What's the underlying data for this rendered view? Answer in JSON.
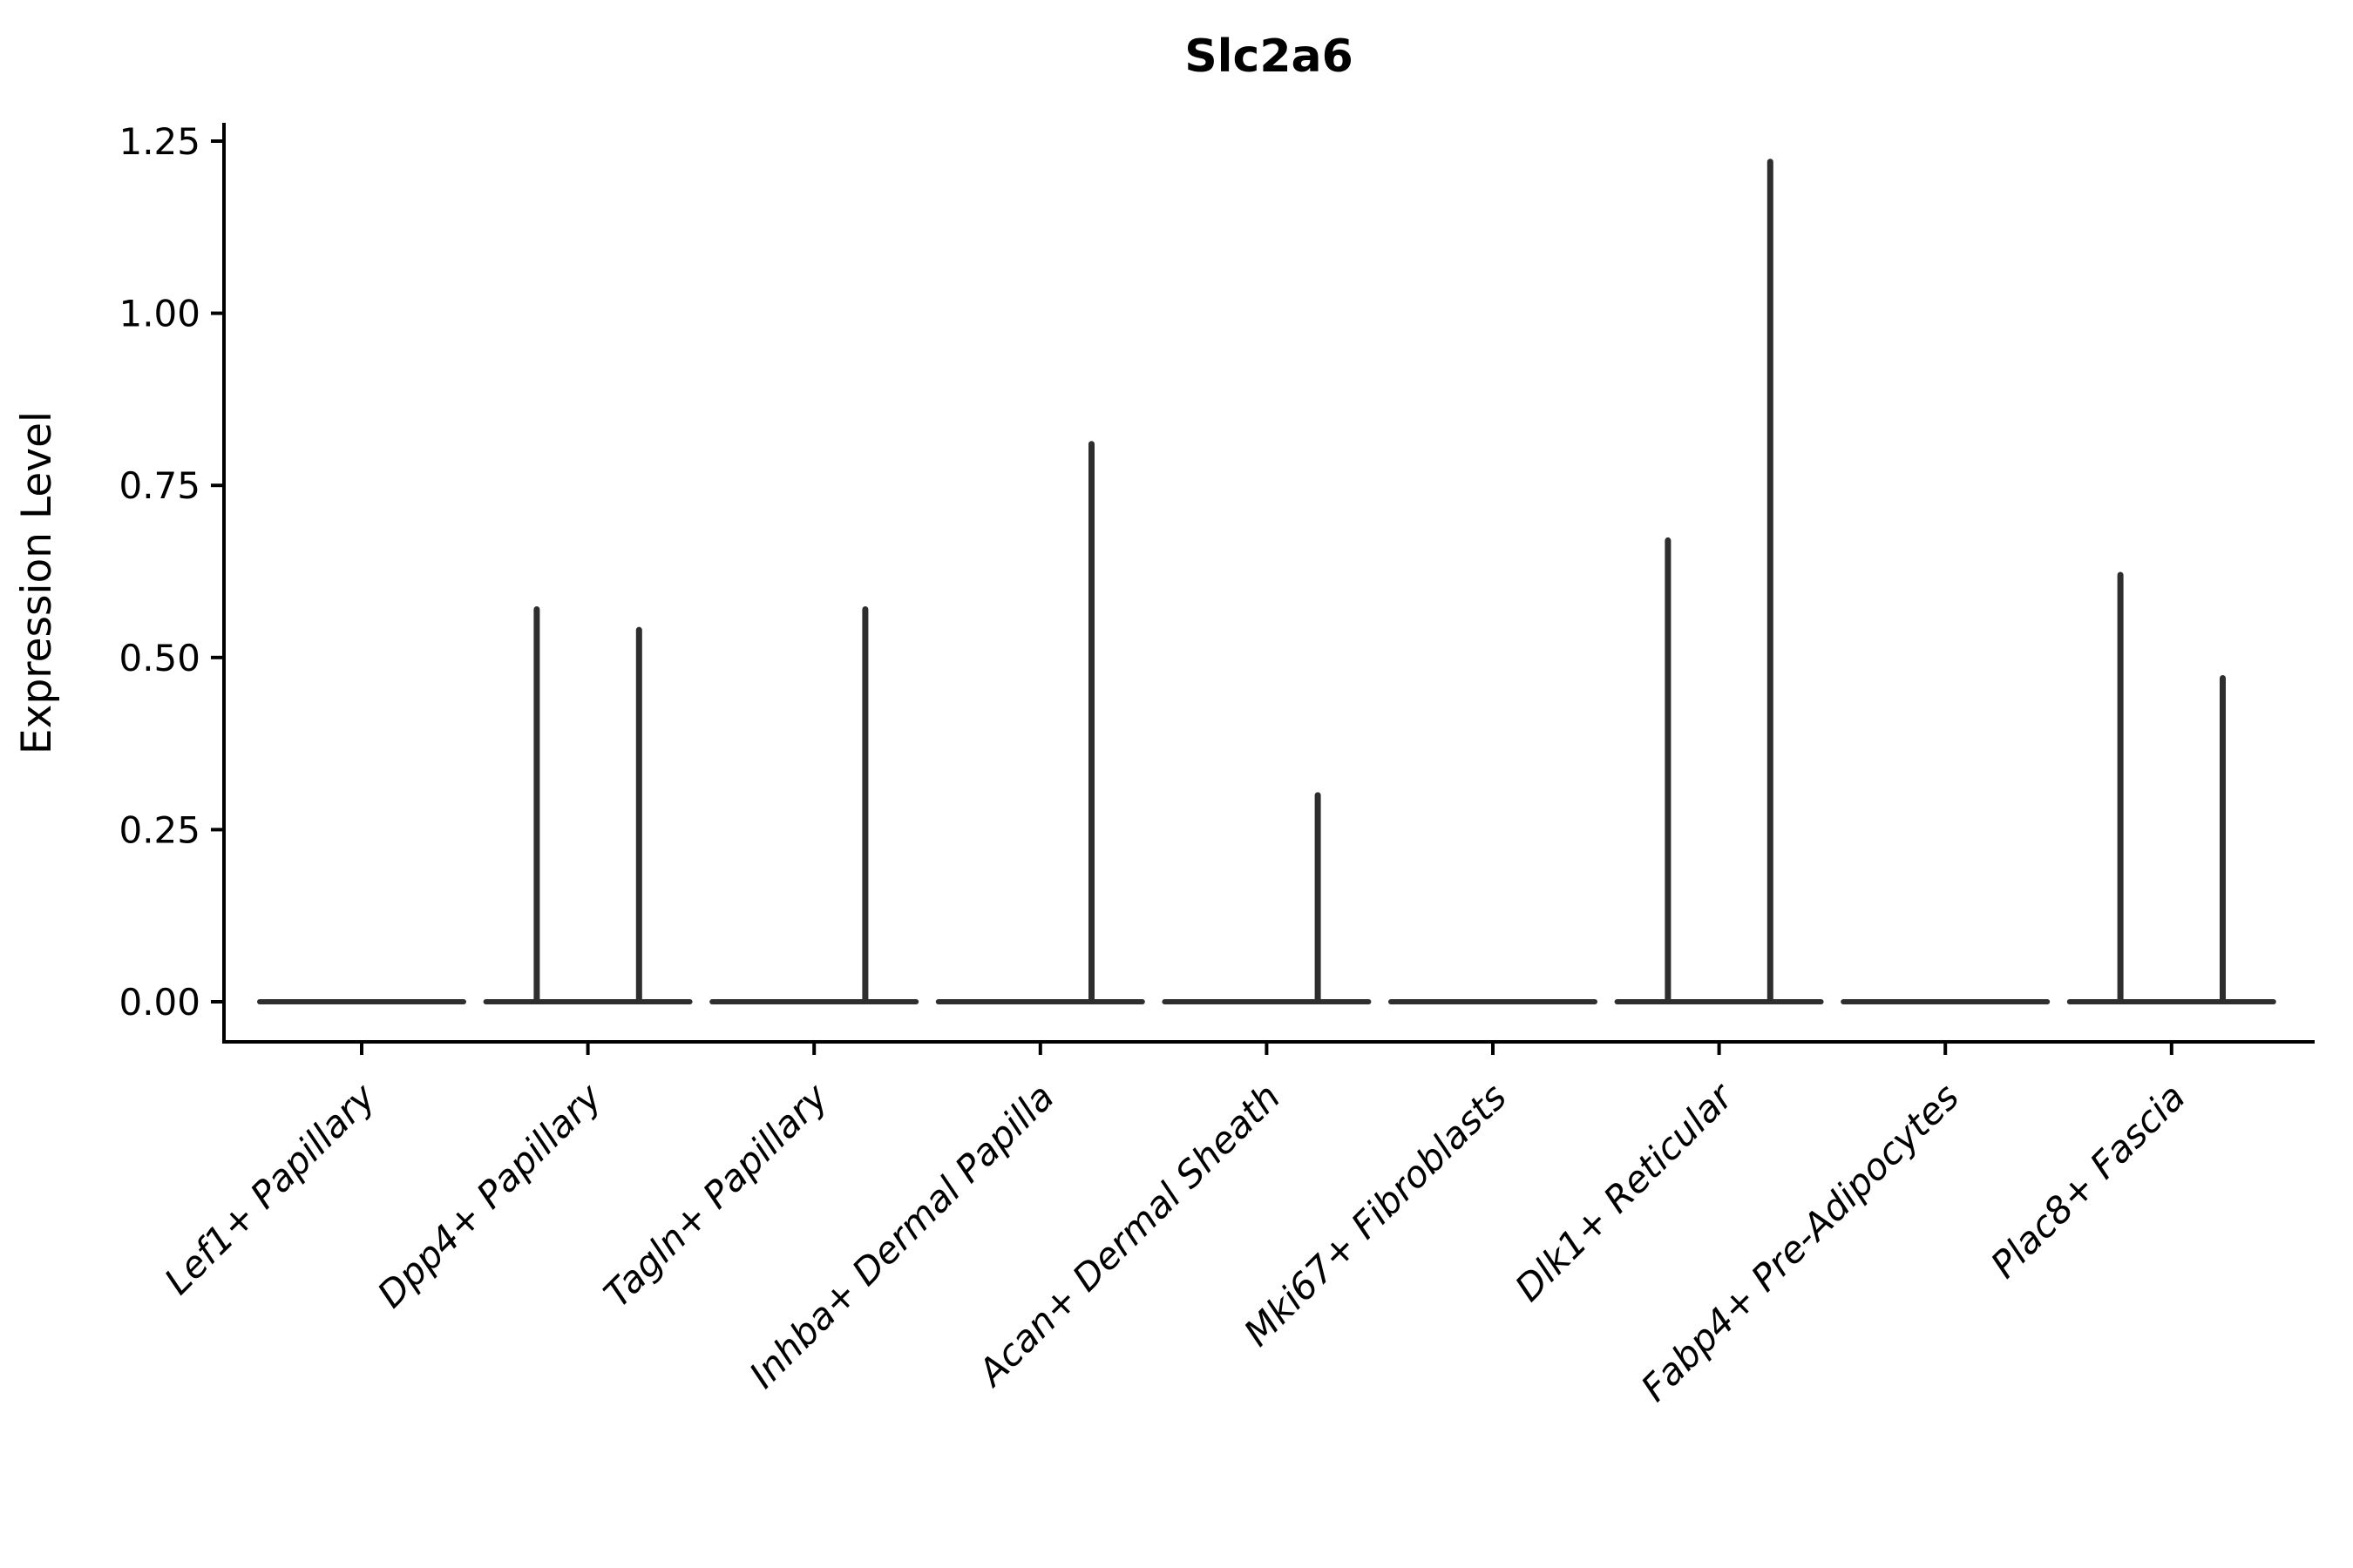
{
  "title": "Slc2a6",
  "ylabel": "Expression Level",
  "chart_data": {
    "type": "violin",
    "title": "Slc2a6",
    "xlabel": "",
    "ylabel": "Expression Level",
    "ylim": [
      -0.06,
      1.31
    ],
    "yticks": [
      0.0,
      0.25,
      0.5,
      0.75,
      1.0,
      1.25
    ],
    "ytick_labels": [
      "0.00",
      "0.25",
      "0.50",
      "0.75",
      "1.00",
      "1.25"
    ],
    "grid": false,
    "legend_position": "none",
    "xtick_rotation_deg": 45,
    "xtick_style": "italic",
    "violins_per_category": 2,
    "violin_shape": "collapsed flat body at 0 with single thin vertical tail spike up to the max expression value",
    "categories": [
      "Lef1+ Papillary",
      "Dpp4+ Papillary",
      "Tagln+ Papillary",
      "Inhba+ Dermal Papilla",
      "Acan+ Dermal Sheath",
      "Mki67+ Fibroblasts",
      "Dlk1+ Reticular",
      "Fabp4+ Pre-Adipocytes",
      "Plac8+ Fascia"
    ],
    "series": [
      {
        "name": "left-violin-max-expression",
        "values": [
          0,
          0.57,
          0,
          0,
          0,
          0,
          0.67,
          0,
          0.62
        ]
      },
      {
        "name": "right-violin-max-expression",
        "values": [
          0,
          0.54,
          0.57,
          0.81,
          0.3,
          0,
          1.22,
          0,
          0.47
        ]
      }
    ],
    "baseline_value": 0,
    "colors": {
      "violin_stroke": "#2e2e2e",
      "axis": "#000000",
      "background": "#ffffff"
    }
  }
}
